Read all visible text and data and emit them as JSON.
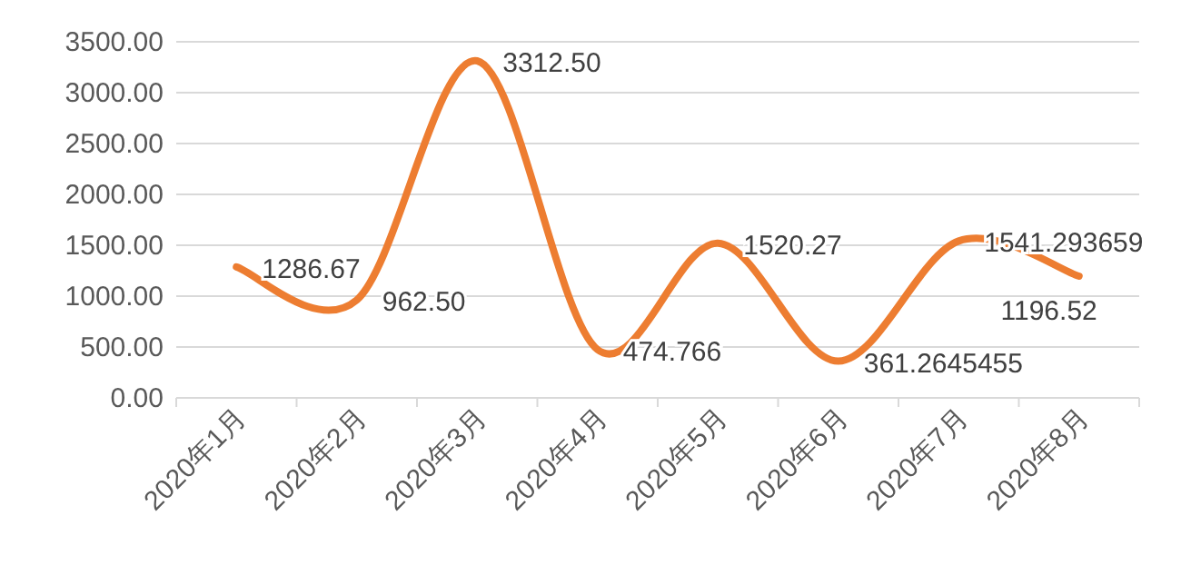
{
  "chart_data": {
    "type": "line",
    "categories": [
      "2020年1月",
      "2020年2月",
      "2020年3月",
      "2020年4月",
      "2020年5月",
      "2020年6月",
      "2020年7月",
      "2020年8月"
    ],
    "series": [
      {
        "color": "#ed7d31",
        "values": [
          1286.67,
          962.5,
          3312.5,
          474.766,
          1520.27,
          361.2645455,
          1541.293659,
          1196.52
        ],
        "value_labels": [
          "1286.67",
          "962.50",
          "3312.50",
          "474.766",
          "1520.27",
          "361.2645455",
          "1541.293659",
          "1196.52"
        ]
      }
    ],
    "ylim": [
      0,
      3500
    ],
    "yticks": [
      {
        "value": 0,
        "label": "0.00"
      },
      {
        "value": 500,
        "label": "500.00"
      },
      {
        "value": 1000,
        "label": "1000.00"
      },
      {
        "value": 1500,
        "label": "1500.00"
      },
      {
        "value": 2000,
        "label": "2000.00"
      },
      {
        "value": 2500,
        "label": "2500.00"
      },
      {
        "value": 3000,
        "label": "3000.00"
      },
      {
        "value": 3500,
        "label": "3500.00"
      }
    ],
    "grid": "y",
    "marker": "none",
    "line_style": "solid"
  }
}
